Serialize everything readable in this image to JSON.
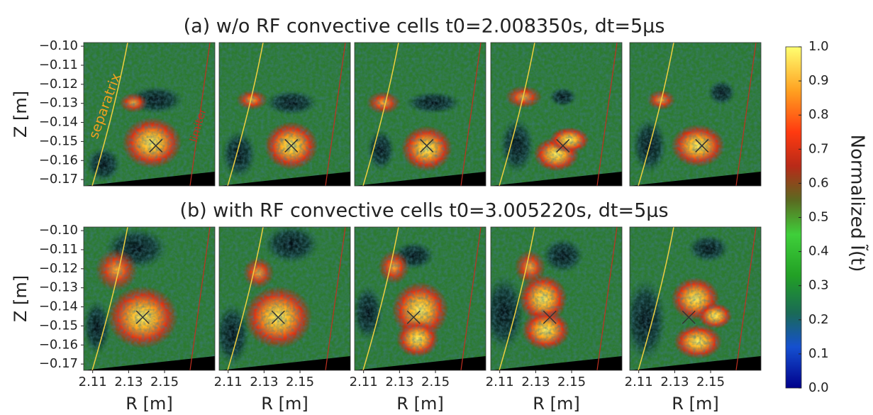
{
  "chart_data": [
    {
      "type": "image",
      "title": "(a) w/o RF convective cells  t0=2.008350s, dt=5μs",
      "ylabel": "Z [m]",
      "ylim": [
        -0.1733,
        -0.0981
      ],
      "yticks": [
        {
          "value": -0.1,
          "label": "−0.10"
        },
        {
          "value": -0.11,
          "label": "−0.11"
        },
        {
          "value": -0.12,
          "label": "−0.12"
        },
        {
          "value": -0.13,
          "label": "−0.13"
        },
        {
          "value": -0.14,
          "label": "−0.14"
        },
        {
          "value": -0.15,
          "label": "−0.15"
        },
        {
          "value": -0.16,
          "label": "−0.16"
        },
        {
          "value": -0.17,
          "label": "−0.17"
        }
      ],
      "annotations": [
        "separatrix",
        "limiter"
      ]
    },
    {
      "type": "image",
      "title": "(b) with RF convective cells  t0=3.005220s, dt=5μs",
      "ylabel": "Z [m]",
      "xlabel": "R [m]",
      "ylim": [
        -0.1733,
        -0.0981
      ],
      "xlim": [
        2.105,
        2.178
      ],
      "yticks": [
        {
          "value": -0.1,
          "label": "−0.10"
        },
        {
          "value": -0.11,
          "label": "−0.11"
        },
        {
          "value": -0.12,
          "label": "−0.12"
        },
        {
          "value": -0.13,
          "label": "−0.13"
        },
        {
          "value": -0.14,
          "label": "−0.14"
        },
        {
          "value": -0.15,
          "label": "−0.15"
        },
        {
          "value": -0.16,
          "label": "−0.16"
        },
        {
          "value": -0.17,
          "label": "−0.17"
        }
      ],
      "xticks": [
        2.11,
        2.13,
        2.15
      ]
    },
    {
      "type": "colorbar",
      "label": "Normalized Ĩ(t)",
      "ylim": [
        0,
        1
      ],
      "yticks": [
        {
          "value": 0,
          "label": "0.0"
        },
        0.1,
        0.2,
        0.3,
        0.4,
        0.5,
        0.6,
        0.7,
        0.8,
        0.9,
        {
          "value": 1,
          "label": "1.0"
        }
      ]
    }
  ]
}
